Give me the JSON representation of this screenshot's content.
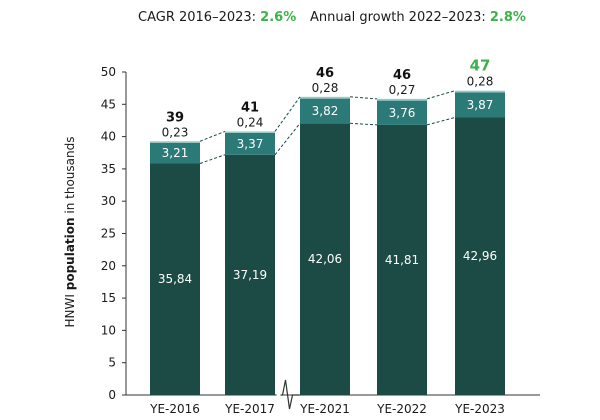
{
  "header": {
    "cagr_label": "CAGR 2016–2023: ",
    "cagr_value": "2.6%",
    "annual_label": "Annual growth 2022–2023: ",
    "annual_value": "2.8%"
  },
  "colors": {
    "base": "#1c4a45",
    "middle": "#2b7a78",
    "top": "#9fc7c3",
    "highlight_total": "#3bb34a",
    "axis": "#333333",
    "connector": "#1c4a45"
  },
  "chart_data": {
    "type": "bar",
    "stacked": true,
    "categories": [
      "YE-2016",
      "YE-2017",
      "YE-2021",
      "YE-2022",
      "YE-2023"
    ],
    "series": [
      {
        "values": [
          35.84,
          37.19,
          42.06,
          41.81,
          42.96
        ],
        "labels": [
          "35,84",
          "37,19",
          "42,06",
          "41,81",
          "42,96"
        ]
      },
      {
        "values": [
          3.21,
          3.37,
          3.82,
          3.76,
          3.87
        ],
        "labels": [
          "3,21",
          "3,37",
          "3,82",
          "3,76",
          "3,87"
        ]
      },
      {
        "values": [
          0.23,
          0.24,
          0.28,
          0.27,
          0.28
        ],
        "labels": [
          "0,23",
          "0,24",
          "0,28",
          "0,27",
          "0,28"
        ]
      }
    ],
    "totals": [
      "39",
      "41",
      "46",
      "46",
      "47"
    ],
    "highlight_total_index": 4,
    "ylabel_prefix": "HNWI ",
    "ylabel_bold": "population",
    "ylabel_suffix": " in thousands",
    "yticks": [
      "0",
      "5",
      "10",
      "15",
      "20",
      "25",
      "30",
      "35",
      "40",
      "45",
      "50"
    ],
    "ylim": [
      0,
      50
    ],
    "axis_break_between": [
      "YE-2017",
      "YE-2021"
    ],
    "grid": false,
    "legend": "none"
  }
}
